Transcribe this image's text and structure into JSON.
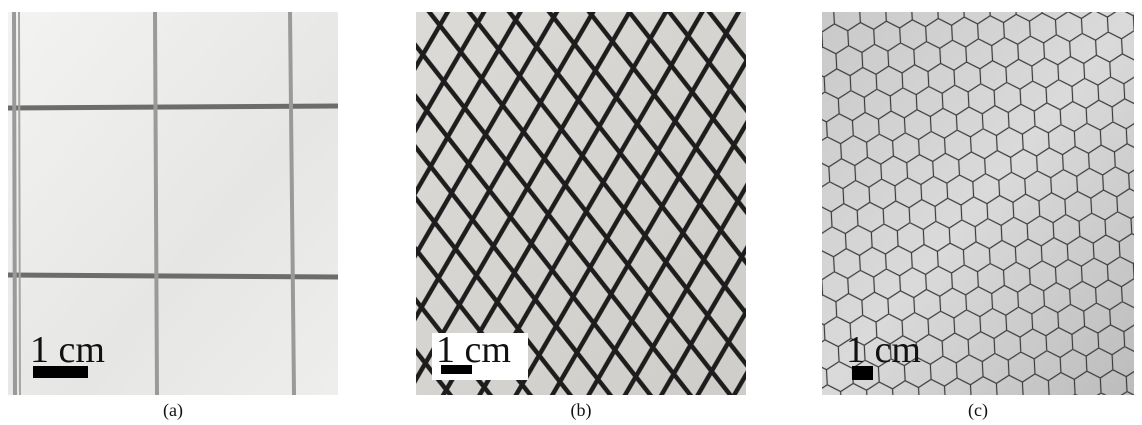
{
  "panels": [
    {
      "scale_label": "1 cm",
      "caption": "(a)"
    },
    {
      "scale_label": "1 cm",
      "caption": "(b)"
    },
    {
      "scale_label": "1 cm",
      "caption": "(c)"
    }
  ]
}
